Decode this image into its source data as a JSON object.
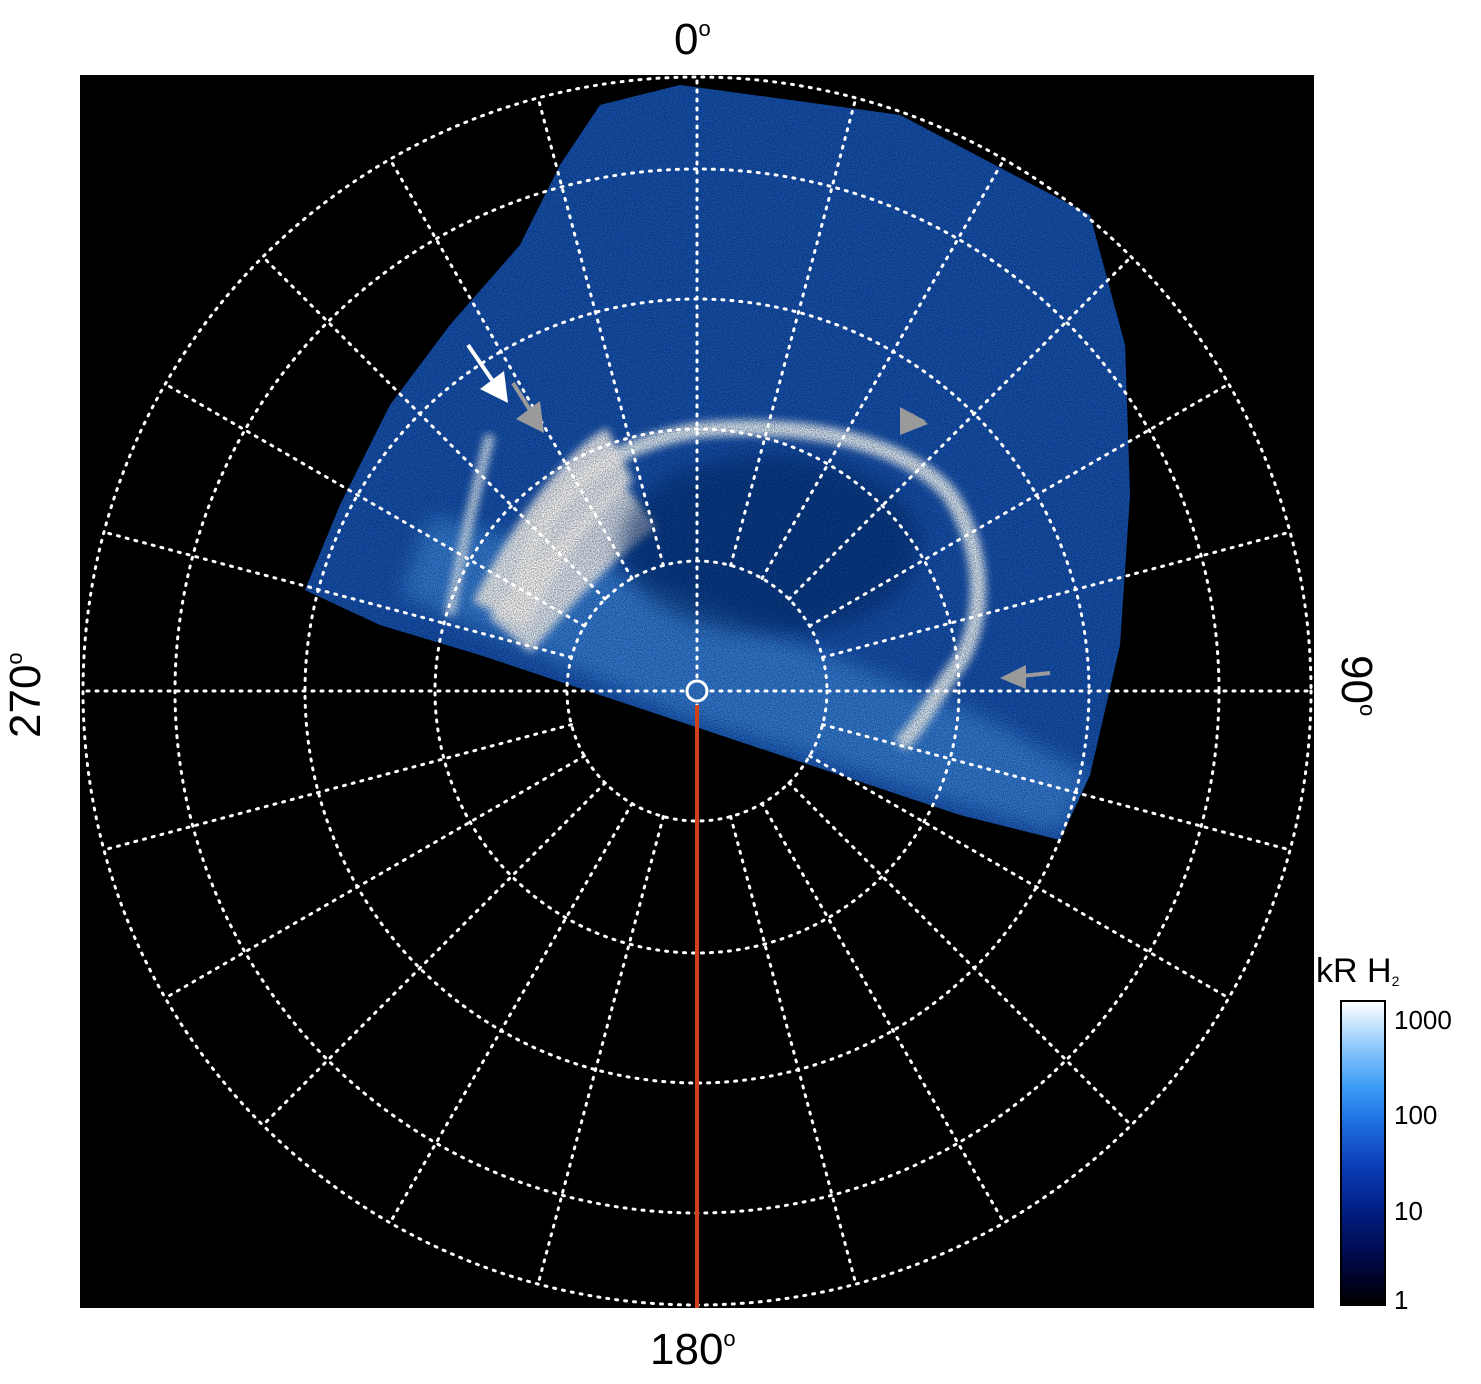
{
  "longitude_labels": {
    "top": "0",
    "right": "90",
    "bottom": "180",
    "left": "270",
    "degree_symbol": "o"
  },
  "colorbar": {
    "title": "kR H",
    "title_subscript": "2",
    "tick_labels": [
      "1000",
      "100",
      "10",
      "1"
    ],
    "scale": "log",
    "range": [
      1,
      1000
    ],
    "colors": [
      "#000000",
      "#001a7a",
      "#1e6fe0",
      "#8cc8fb",
      "#ffffff"
    ]
  },
  "colors": {
    "background": "#000000",
    "grid": "#ffffff",
    "meridian_line": "#d0401b",
    "arrow_white": "#ffffff",
    "arrow_gray": "#9a9a9a"
  }
}
